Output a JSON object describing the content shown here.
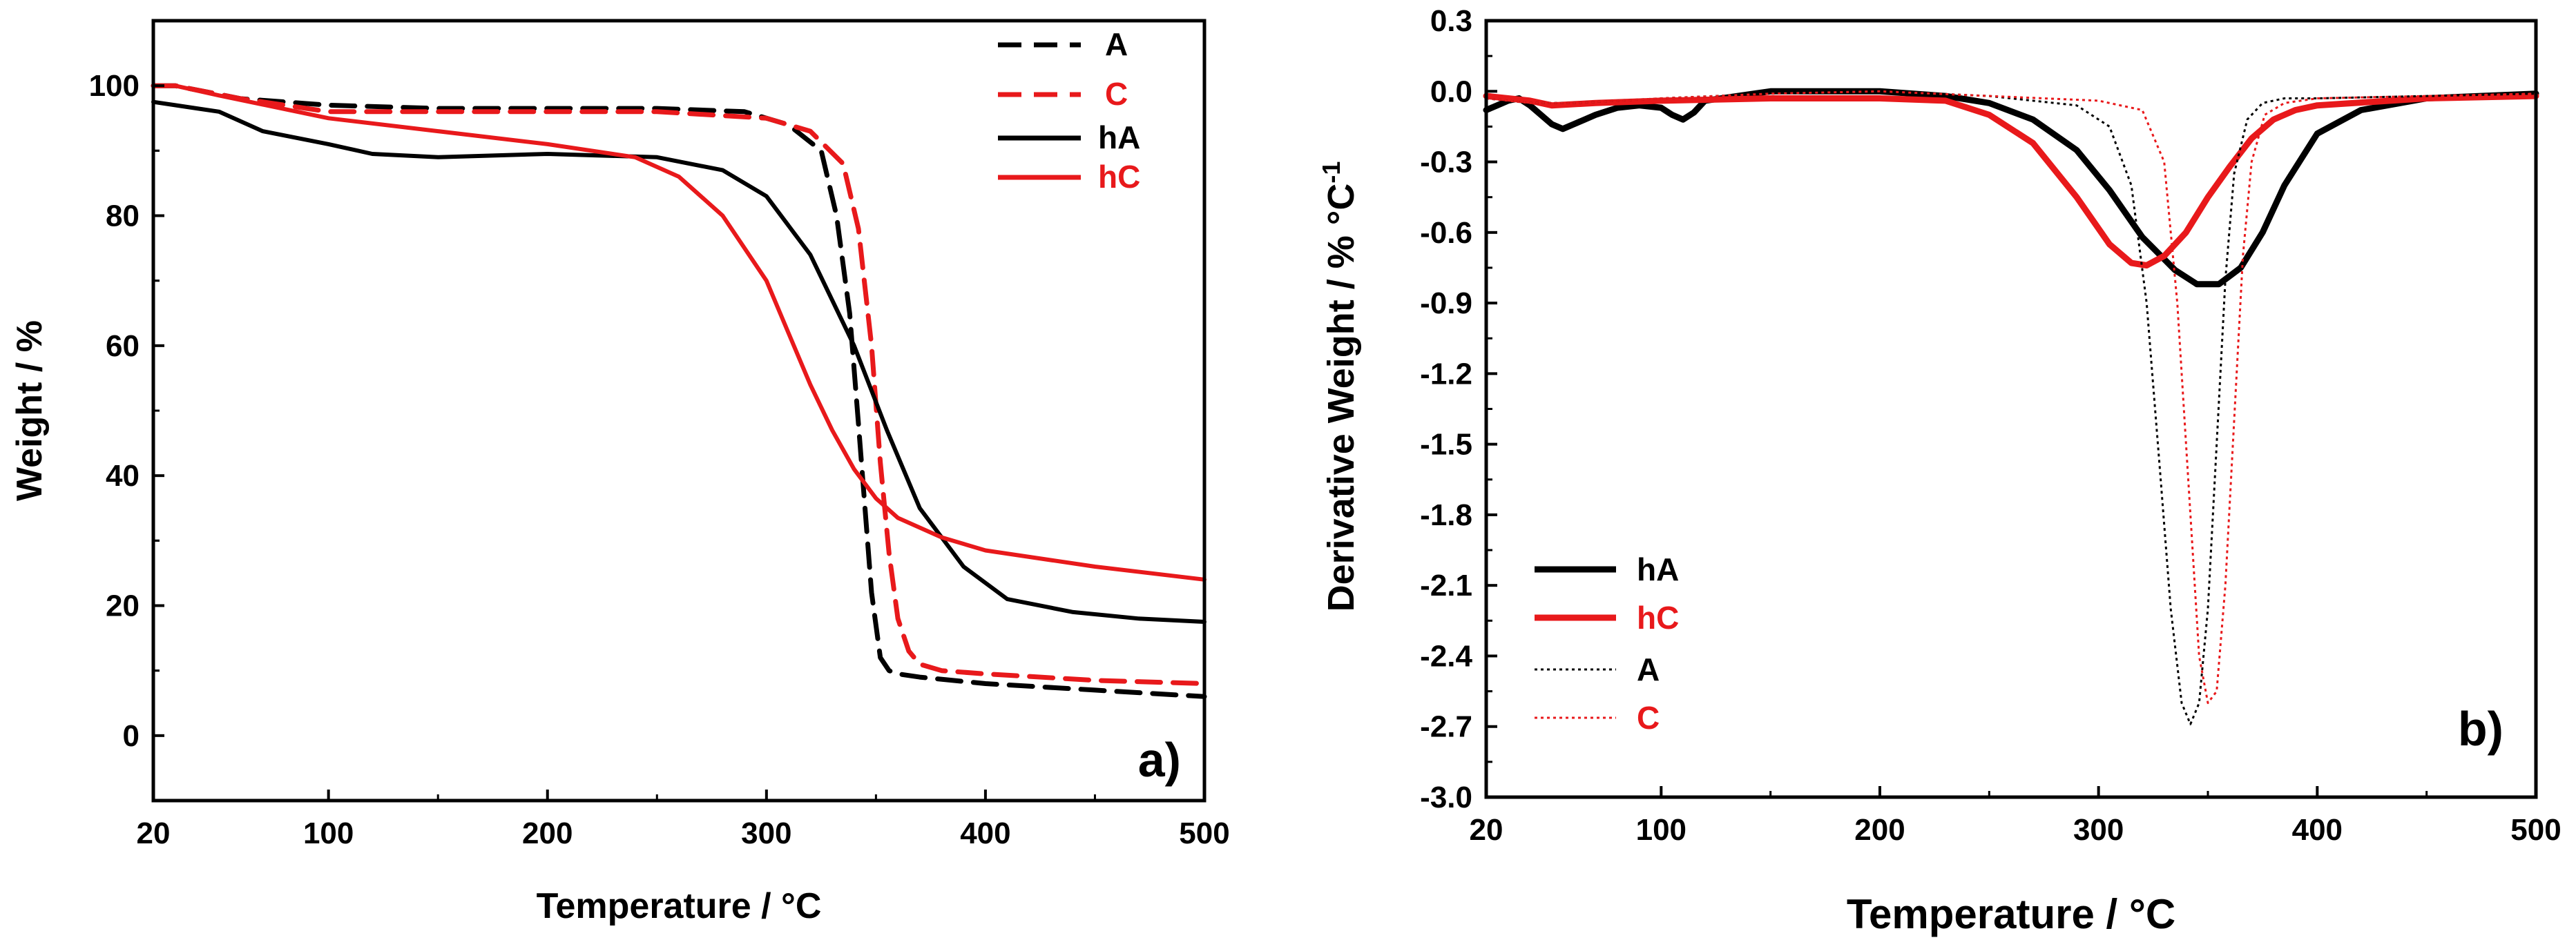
{
  "chart_data": [
    {
      "type": "line",
      "panel_label": "a)",
      "xlabel": "Temperature / °C",
      "ylabel": "Weight / %",
      "xlim": [
        20,
        500
      ],
      "ylim": [
        -10,
        110
      ],
      "xticks": [
        20,
        100,
        200,
        300,
        400,
        500
      ],
      "xtick_labels": [
        "20",
        "100",
        "200",
        "300",
        "400",
        "500"
      ],
      "yticks": [
        0,
        20,
        40,
        60,
        80,
        100
      ],
      "ytick_labels": [
        "0",
        "20",
        "40",
        "60",
        "80",
        "100"
      ],
      "legend_position": "top-right",
      "series": [
        {
          "name": "A",
          "color": "#000000",
          "style": "dashed",
          "x": [
            20,
            30,
            60,
            100,
            150,
            200,
            250,
            290,
            310,
            325,
            332,
            338,
            342,
            345,
            348,
            352,
            356,
            360,
            370,
            400,
            450,
            500
          ],
          "y": [
            100,
            100,
            98,
            97,
            96.5,
            96.5,
            96.5,
            96,
            94,
            90,
            80,
            65,
            48,
            35,
            22,
            12,
            10,
            9.5,
            9,
            8,
            7,
            6
          ]
        },
        {
          "name": "C",
          "color": "#e8191b",
          "style": "dashed",
          "x": [
            20,
            30,
            60,
            100,
            150,
            200,
            250,
            300,
            320,
            335,
            342,
            348,
            352,
            356,
            360,
            365,
            370,
            380,
            400,
            450,
            500
          ],
          "y": [
            100,
            100,
            98,
            96,
            96,
            96,
            96,
            95,
            93,
            88,
            78,
            60,
            42,
            28,
            18,
            13,
            11,
            10,
            9.5,
            8.5,
            8
          ]
        },
        {
          "name": "hA",
          "color": "#000000",
          "style": "solid",
          "x": [
            20,
            30,
            40,
            50,
            70,
            100,
            120,
            150,
            200,
            250,
            280,
            300,
            320,
            340,
            355,
            370,
            390,
            410,
            440,
            470,
            500
          ],
          "y": [
            97.5,
            97,
            96.5,
            96,
            93,
            91,
            89.5,
            89,
            89.5,
            89,
            87,
            83,
            74,
            60,
            47,
            35,
            26,
            21,
            19,
            18,
            17.5
          ]
        },
        {
          "name": "hC",
          "color": "#e8191b",
          "style": "solid",
          "x": [
            20,
            30,
            50,
            100,
            150,
            200,
            240,
            260,
            280,
            300,
            310,
            320,
            330,
            340,
            350,
            360,
            380,
            400,
            450,
            500
          ],
          "y": [
            100,
            100,
            98.5,
            95,
            93,
            91,
            89,
            86,
            80,
            70,
            62,
            54,
            47,
            41,
            36.5,
            33.5,
            30.5,
            28.5,
            26,
            24
          ]
        }
      ]
    },
    {
      "type": "line",
      "panel_label": "b)",
      "xlabel": "Temperature / °C",
      "ylabel": "Derivative Weight / % °C",
      "ylabel_superscript": "-1",
      "xlim": [
        20,
        500
      ],
      "ylim": [
        -3.0,
        0.3
      ],
      "xticks": [
        20,
        100,
        200,
        300,
        400,
        500
      ],
      "xtick_labels": [
        "20",
        "100",
        "200",
        "300",
        "400",
        "500"
      ],
      "yticks": [
        0.3,
        0.0,
        -0.3,
        -0.6,
        -0.9,
        -1.2,
        -1.5,
        -1.8,
        -2.1,
        -2.4,
        -2.7,
        -3.0
      ],
      "ytick_labels": [
        "0.3",
        "0.0",
        "-0.3",
        "-0.6",
        "-0.9",
        "-1.2",
        "-1.5",
        "-1.8",
        "-2.1",
        "-2.4",
        "-2.7",
        "-3.0"
      ],
      "legend_position": "bottom-left",
      "series": [
        {
          "name": "hA",
          "color": "#000000",
          "style": "solid",
          "weight": "thick",
          "x": [
            20,
            25,
            30,
            35,
            40,
            45,
            50,
            55,
            60,
            65,
            70,
            80,
            90,
            100,
            105,
            110,
            115,
            120,
            150,
            200,
            230,
            250,
            270,
            290,
            305,
            320,
            335,
            345,
            355,
            365,
            375,
            385,
            400,
            420,
            450,
            500
          ],
          "y": [
            -0.08,
            -0.06,
            -0.04,
            -0.03,
            -0.06,
            -0.1,
            -0.14,
            -0.16,
            -0.14,
            -0.12,
            -0.1,
            -0.07,
            -0.06,
            -0.07,
            -0.1,
            -0.12,
            -0.09,
            -0.04,
            0.0,
            0.0,
            -0.02,
            -0.05,
            -0.12,
            -0.25,
            -0.42,
            -0.62,
            -0.76,
            -0.82,
            -0.82,
            -0.75,
            -0.6,
            -0.4,
            -0.18,
            -0.08,
            -0.03,
            -0.01
          ]
        },
        {
          "name": "hC",
          "color": "#e8191b",
          "style": "solid",
          "weight": "thick",
          "x": [
            20,
            30,
            40,
            50,
            70,
            100,
            150,
            200,
            230,
            250,
            270,
            290,
            305,
            315,
            322,
            330,
            340,
            350,
            360,
            370,
            380,
            390,
            400,
            450,
            500
          ],
          "y": [
            -0.02,
            -0.03,
            -0.04,
            -0.06,
            -0.05,
            -0.04,
            -0.03,
            -0.03,
            -0.04,
            -0.1,
            -0.22,
            -0.45,
            -0.65,
            -0.73,
            -0.74,
            -0.7,
            -0.6,
            -0.45,
            -0.32,
            -0.2,
            -0.12,
            -0.08,
            -0.06,
            -0.03,
            -0.02
          ]
        },
        {
          "name": "A",
          "color": "#000000",
          "style": "dotted",
          "weight": "thin",
          "x": [
            20,
            40,
            60,
            100,
            150,
            200,
            250,
            290,
            305,
            315,
            322,
            328,
            333,
            338,
            342,
            346,
            350,
            354,
            358,
            362,
            368,
            375,
            385,
            400,
            450,
            500
          ],
          "y": [
            -0.03,
            -0.05,
            -0.05,
            -0.03,
            -0.01,
            0.0,
            -0.02,
            -0.06,
            -0.15,
            -0.4,
            -0.9,
            -1.6,
            -2.2,
            -2.6,
            -2.69,
            -2.6,
            -2.2,
            -1.5,
            -0.8,
            -0.35,
            -0.12,
            -0.05,
            -0.03,
            -0.03,
            -0.02,
            -0.01
          ]
        },
        {
          "name": "C",
          "color": "#e8191b",
          "style": "dotted",
          "weight": "thin",
          "x": [
            20,
            40,
            60,
            100,
            150,
            200,
            250,
            300,
            320,
            330,
            336,
            342,
            346,
            350,
            354,
            358,
            362,
            366,
            370,
            376,
            385,
            400,
            450,
            500
          ],
          "y": [
            -0.03,
            -0.05,
            -0.05,
            -0.03,
            -0.01,
            0.0,
            -0.02,
            -0.04,
            -0.08,
            -0.3,
            -0.9,
            -1.8,
            -2.4,
            -2.6,
            -2.55,
            -2.1,
            -1.4,
            -0.7,
            -0.3,
            -0.1,
            -0.05,
            -0.03,
            -0.02,
            -0.01
          ]
        }
      ]
    }
  ]
}
